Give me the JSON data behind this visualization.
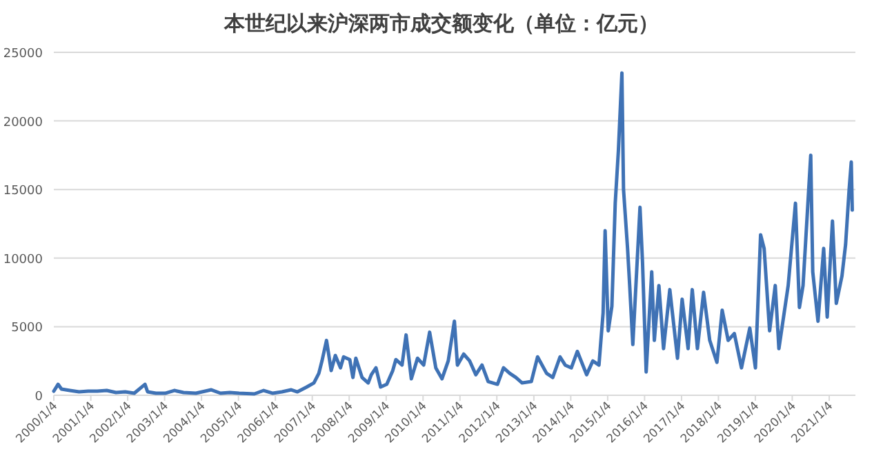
{
  "chart_data": {
    "type": "line",
    "title": "本世纪以来沪深两市成交额变化（单位：亿元）",
    "x": [
      "2000-01-04",
      "2000-02-15",
      "2000-03-20",
      "2000-06-10",
      "2000-09-10",
      "2000-12-10",
      "2001-03-10",
      "2001-06-10",
      "2001-09-10",
      "2001-12-10",
      "2002-03-10",
      "2002-06-24",
      "2002-07-20",
      "2002-10-10",
      "2003-01-10",
      "2003-04-10",
      "2003-07-10",
      "2003-11-10",
      "2004-02-10",
      "2004-04-10",
      "2004-07-10",
      "2004-10-10",
      "2005-01-10",
      "2005-06-10",
      "2005-09-10",
      "2005-12-10",
      "2006-03-10",
      "2006-06-10",
      "2006-08-10",
      "2006-11-10",
      "2007-01-20",
      "2007-03-10",
      "2007-04-10",
      "2007-05-25",
      "2007-07-10",
      "2007-08-20",
      "2007-10-10",
      "2007-11-10",
      "2008-01-10",
      "2008-02-10",
      "2008-03-10",
      "2008-05-10",
      "2008-07-10",
      "2008-08-10",
      "2008-09-25",
      "2008-11-10",
      "2009-01-10",
      "2009-03-10",
      "2009-04-10",
      "2009-06-10",
      "2009-07-20",
      "2009-09-10",
      "2009-11-10",
      "2010-01-10",
      "2010-03-10",
      "2010-05-10",
      "2010-07-10",
      "2010-09-10",
      "2010-11-10",
      "2010-12-10",
      "2011-02-10",
      "2011-04-10",
      "2011-06-10",
      "2011-08-10",
      "2011-10-10",
      "2012-01-10",
      "2012-03-10",
      "2012-05-10",
      "2012-07-10",
      "2012-09-10",
      "2012-12-10",
      "2013-02-10",
      "2013-05-10",
      "2013-07-10",
      "2013-09-20",
      "2013-11-10",
      "2014-01-10",
      "2014-03-10",
      "2014-06-10",
      "2014-08-10",
      "2014-10-10",
      "2014-11-20",
      "2014-12-10",
      "2015-01-10",
      "2015-02-15",
      "2015-03-20",
      "2015-04-20",
      "2015-05-25",
      "2015-06-10",
      "2015-07-20",
      "2015-08-10",
      "2015-09-10",
      "2015-11-20",
      "2015-12-15",
      "2016-01-20",
      "2016-03-15",
      "2016-04-10",
      "2016-05-25",
      "2016-07-10",
      "2016-09-10",
      "2016-11-25",
      "2017-01-10",
      "2017-03-10",
      "2017-04-20",
      "2017-06-10",
      "2017-08-10",
      "2017-10-10",
      "2017-12-20",
      "2018-02-10",
      "2018-04-10",
      "2018-06-10",
      "2018-08-20",
      "2018-11-10",
      "2019-01-05",
      "2019-02-25",
      "2019-04-01",
      "2019-05-25",
      "2019-07-20",
      "2019-08-25",
      "2019-11-25",
      "2020-02-05",
      "2020-03-15",
      "2020-04-20",
      "2020-07-05",
      "2020-07-25",
      "2020-09-15",
      "2020-11-10",
      "2020-12-15",
      "2021-02-05",
      "2021-03-15",
      "2021-05-10",
      "2021-06-15",
      "2021-07-20",
      "2021-08-10",
      "2021-08-20"
    ],
    "series": [
      {
        "color": "#3f72b5",
        "values": [
          300,
          800,
          450,
          350,
          250,
          300,
          300,
          350,
          200,
          250,
          150,
          800,
          250,
          150,
          150,
          350,
          200,
          150,
          300,
          400,
          150,
          200,
          150,
          100,
          350,
          150,
          250,
          400,
          250,
          600,
          900,
          1600,
          2500,
          4000,
          1800,
          2900,
          2000,
          2800,
          2600,
          1300,
          2700,
          1300,
          900,
          1500,
          2000,
          600,
          800,
          1800,
          2600,
          2200,
          4400,
          1200,
          2700,
          2200,
          4600,
          2000,
          1200,
          2500,
          5400,
          2200,
          3000,
          2500,
          1500,
          2200,
          1000,
          800,
          2000,
          1600,
          1300,
          900,
          1000,
          2800,
          1600,
          1300,
          2800,
          2200,
          2000,
          3200,
          1500,
          2500,
          2200,
          6000,
          12000,
          4700,
          6500,
          14000,
          17800,
          23500,
          15000,
          10700,
          8000,
          3700,
          13700,
          9700,
          1700,
          9000,
          4000,
          8000,
          3400,
          7700,
          2700,
          7000,
          3400,
          7700,
          3400,
          7500,
          4000,
          2400,
          6200,
          4000,
          4500,
          2000,
          4900,
          2000,
          11700,
          10700,
          4700,
          8000,
          3400,
          8000,
          14000,
          6400,
          8000,
          17500,
          9000,
          5400,
          10700,
          5700,
          12700,
          6700,
          8700,
          11000,
          15000,
          17000,
          13500
        ]
      }
    ],
    "xlim": [
      "2000-01-04",
      "2021-09-20"
    ],
    "xticks": [
      {
        "value": "2000-01-04",
        "label": "2000/1/4"
      },
      {
        "value": "2001-01-04",
        "label": "2001/1/4"
      },
      {
        "value": "2002-01-04",
        "label": "2002/1/4"
      },
      {
        "value": "2003-01-04",
        "label": "2003/1/4"
      },
      {
        "value": "2004-01-04",
        "label": "2004/1/4"
      },
      {
        "value": "2005-01-04",
        "label": "2005/1/4"
      },
      {
        "value": "2006-01-04",
        "label": "2006/1/4"
      },
      {
        "value": "2007-01-04",
        "label": "2007/1/4"
      },
      {
        "value": "2008-01-04",
        "label": "2008/1/4"
      },
      {
        "value": "2009-01-04",
        "label": "2009/1/4"
      },
      {
        "value": "2010-01-04",
        "label": "2010/1/4"
      },
      {
        "value": "2011-01-04",
        "label": "2011/1/4"
      },
      {
        "value": "2012-01-04",
        "label": "2012/1/4"
      },
      {
        "value": "2013-01-04",
        "label": "2013/1/4"
      },
      {
        "value": "2014-01-04",
        "label": "2014/1/4"
      },
      {
        "value": "2015-01-04",
        "label": "2015/1/4"
      },
      {
        "value": "2016-01-04",
        "label": "2016/1/4"
      },
      {
        "value": "2017-01-04",
        "label": "2017/1/4"
      },
      {
        "value": "2018-01-04",
        "label": "2018/1/4"
      },
      {
        "value": "2019-01-04",
        "label": "2019/1/4"
      },
      {
        "value": "2020-01-04",
        "label": "2020/1/4"
      },
      {
        "value": "2021-01-04",
        "label": "2021/1/4"
      }
    ],
    "ylim": [
      0,
      25000
    ],
    "yticks": [
      0,
      5000,
      10000,
      15000,
      20000,
      25000
    ],
    "grid": "y",
    "marker": "none",
    "line_style": "solid"
  }
}
